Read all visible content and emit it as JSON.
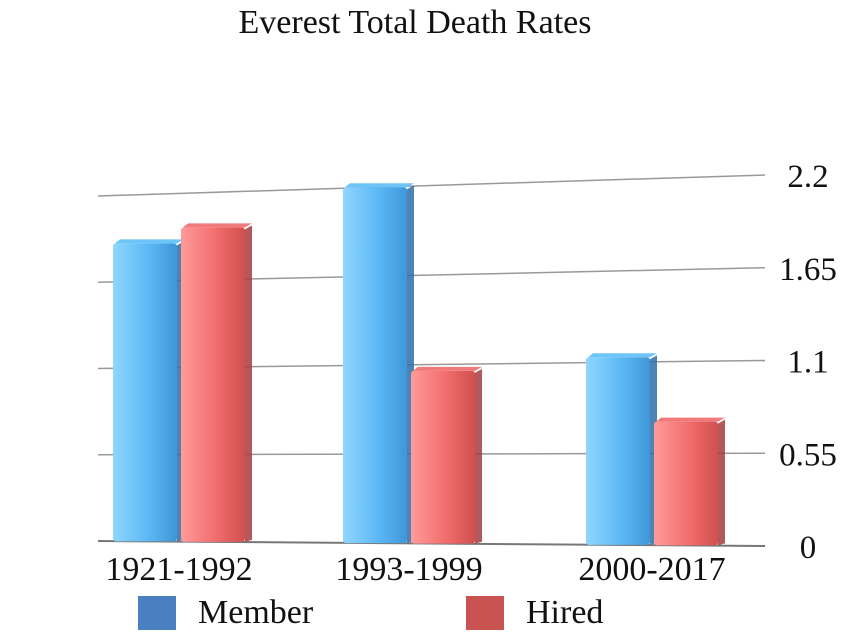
{
  "chart_data": {
    "type": "bar",
    "title": "Everest Total Death Rates",
    "categories": [
      "1921-1992",
      "1993-1999",
      "2000-2017"
    ],
    "series": [
      {
        "name": "Member",
        "values": [
          1.89,
          2.2,
          1.13
        ],
        "color": "#5bb8f5"
      },
      {
        "name": "Hired",
        "values": [
          1.98,
          1.06,
          0.74
        ],
        "color": "#f26d6d"
      }
    ],
    "y_ticks": [
      "2.2",
      "1.65",
      "1.1",
      "0.55",
      "0"
    ],
    "ylim": [
      0,
      2.2
    ],
    "grid": true,
    "legend_position": "bottom",
    "legend_colors": {
      "Member": "#4a7fc1",
      "Hired": "#c95351"
    }
  }
}
